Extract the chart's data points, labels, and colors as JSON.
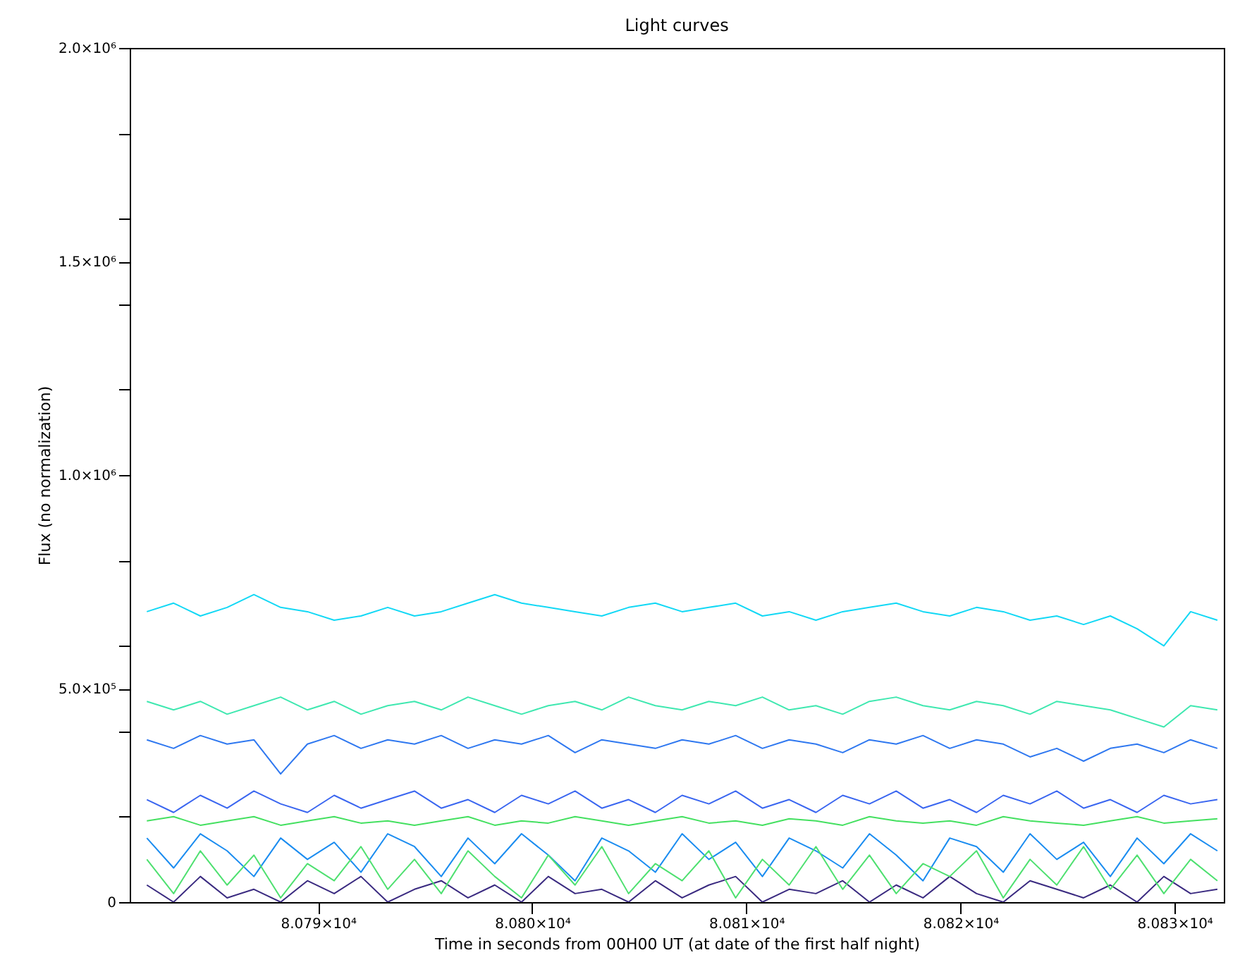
{
  "chart_data": {
    "type": "line",
    "title": "Light curves",
    "xlabel": "Time in seconds from 00H00 UT (at date of the first half night)",
    "ylabel": "Flux (no normalization)",
    "xlim": [
      80781.2,
      80832.3
    ],
    "ylim": [
      0,
      2000000
    ],
    "grid": false,
    "legend": false,
    "line_style": "solid",
    "xticks": [
      {
        "value": 80790,
        "label": "8.079×10⁴"
      },
      {
        "value": 80800,
        "label": "8.080×10⁴"
      },
      {
        "value": 80810,
        "label": "8.081×10⁴"
      },
      {
        "value": 80820,
        "label": "8.082×10⁴"
      },
      {
        "value": 80830,
        "label": "8.083×10⁴"
      }
    ],
    "yticks": [
      0,
      {
        "value": 200000,
        "label": null
      },
      {
        "value": 400000,
        "label": null
      },
      {
        "value": 500000,
        "label": "5.0×10⁵"
      },
      {
        "value": 600000,
        "label": null
      },
      {
        "value": 800000,
        "label": null
      },
      {
        "value": 1000000,
        "label": "1.0×10⁶"
      },
      {
        "value": 1200000,
        "label": null
      },
      {
        "value": 1400000,
        "label": null
      },
      {
        "value": 1500000,
        "label": "1.5×10⁶"
      },
      {
        "value": 1600000,
        "label": null
      },
      {
        "value": 1800000,
        "label": null
      },
      {
        "value": 2000000,
        "label": "2.0×10⁶"
      }
    ],
    "x": [
      80782,
      80783.25,
      80784.5,
      80785.75,
      80787,
      80788.25,
      80789.5,
      80790.75,
      80792,
      80793.25,
      80794.5,
      80795.75,
      80797,
      80798.25,
      80799.5,
      80800.75,
      80802,
      80803.25,
      80804.5,
      80805.75,
      80807,
      80808.25,
      80809.5,
      80810.75,
      80812,
      80813.25,
      80814.5,
      80815.75,
      80817,
      80818.25,
      80819.5,
      80820.75,
      80822,
      80823.25,
      80824.5,
      80825.75,
      80827,
      80828.25,
      80829.5,
      80830.75,
      80832
    ],
    "series": [
      {
        "color": "#12d8f5",
        "values": [
          680000,
          700000,
          670000,
          690000,
          720000,
          690000,
          680000,
          660000,
          670000,
          690000,
          670000,
          680000,
          700000,
          720000,
          700000,
          690000,
          680000,
          670000,
          690000,
          700000,
          680000,
          690000,
          700000,
          670000,
          680000,
          660000,
          680000,
          690000,
          700000,
          680000,
          670000,
          690000,
          680000,
          660000,
          670000,
          650000,
          670000,
          640000,
          600000,
          680000,
          660000
        ]
      },
      {
        "color": "#3fe8b0",
        "values": [
          470000,
          450000,
          470000,
          440000,
          460000,
          480000,
          450000,
          470000,
          440000,
          460000,
          470000,
          450000,
          480000,
          460000,
          440000,
          460000,
          470000,
          450000,
          480000,
          460000,
          450000,
          470000,
          460000,
          480000,
          450000,
          460000,
          440000,
          470000,
          480000,
          460000,
          450000,
          470000,
          460000,
          440000,
          470000,
          460000,
          450000,
          430000,
          410000,
          460000,
          450000
        ]
      },
      {
        "color": "#2f78f0",
        "values": [
          380000,
          360000,
          390000,
          370000,
          380000,
          300000,
          370000,
          390000,
          360000,
          380000,
          370000,
          390000,
          360000,
          380000,
          370000,
          390000,
          350000,
          380000,
          370000,
          360000,
          380000,
          370000,
          390000,
          360000,
          380000,
          370000,
          350000,
          380000,
          370000,
          390000,
          360000,
          380000,
          370000,
          340000,
          360000,
          330000,
          360000,
          370000,
          350000,
          380000,
          360000
        ]
      },
      {
        "color": "#3a66f0",
        "values": [
          240000,
          210000,
          250000,
          220000,
          260000,
          230000,
          210000,
          250000,
          220000,
          240000,
          260000,
          220000,
          240000,
          210000,
          250000,
          230000,
          260000,
          220000,
          240000,
          210000,
          250000,
          230000,
          260000,
          220000,
          240000,
          210000,
          250000,
          230000,
          260000,
          220000,
          240000,
          210000,
          250000,
          230000,
          260000,
          220000,
          240000,
          210000,
          250000,
          230000,
          240000
        ]
      },
      {
        "color": "#1a8cf0",
        "values": [
          150000,
          80000,
          160000,
          120000,
          60000,
          150000,
          100000,
          140000,
          70000,
          160000,
          130000,
          60000,
          150000,
          90000,
          160000,
          110000,
          50000,
          150000,
          120000,
          70000,
          160000,
          100000,
          140000,
          60000,
          150000,
          120000,
          80000,
          160000,
          110000,
          50000,
          150000,
          130000,
          70000,
          160000,
          100000,
          140000,
          60000,
          150000,
          90000,
          160000,
          120000
        ]
      },
      {
        "color": "#3a2a80",
        "values": [
          40000,
          0,
          60000,
          10000,
          30000,
          0,
          50000,
          20000,
          60000,
          0,
          30000,
          50000,
          10000,
          40000,
          0,
          60000,
          20000,
          30000,
          0,
          50000,
          10000,
          40000,
          60000,
          0,
          30000,
          20000,
          50000,
          0,
          40000,
          10000,
          60000,
          20000,
          0,
          50000,
          30000,
          10000,
          40000,
          0,
          60000,
          20000,
          30000
        ]
      },
      {
        "color": "#44e060",
        "values": [
          190000,
          200000,
          180000,
          190000,
          200000,
          180000,
          190000,
          200000,
          185000,
          190000,
          180000,
          190000,
          200000,
          180000,
          190000,
          185000,
          200000,
          190000,
          180000,
          190000,
          200000,
          185000,
          190000,
          180000,
          195000,
          190000,
          180000,
          200000,
          190000,
          185000,
          190000,
          180000,
          200000,
          190000,
          185000,
          180000,
          190000,
          200000,
          185000,
          190000,
          195000
        ]
      },
      {
        "color": "#4ee070",
        "values": [
          100000,
          20000,
          120000,
          40000,
          110000,
          10000,
          90000,
          50000,
          130000,
          30000,
          100000,
          20000,
          120000,
          60000,
          10000,
          110000,
          40000,
          130000,
          20000,
          90000,
          50000,
          120000,
          10000,
          100000,
          40000,
          130000,
          30000,
          110000,
          20000,
          90000,
          60000,
          120000,
          10000,
          100000,
          40000,
          130000,
          30000,
          110000,
          20000,
          100000,
          50000
        ]
      }
    ]
  }
}
